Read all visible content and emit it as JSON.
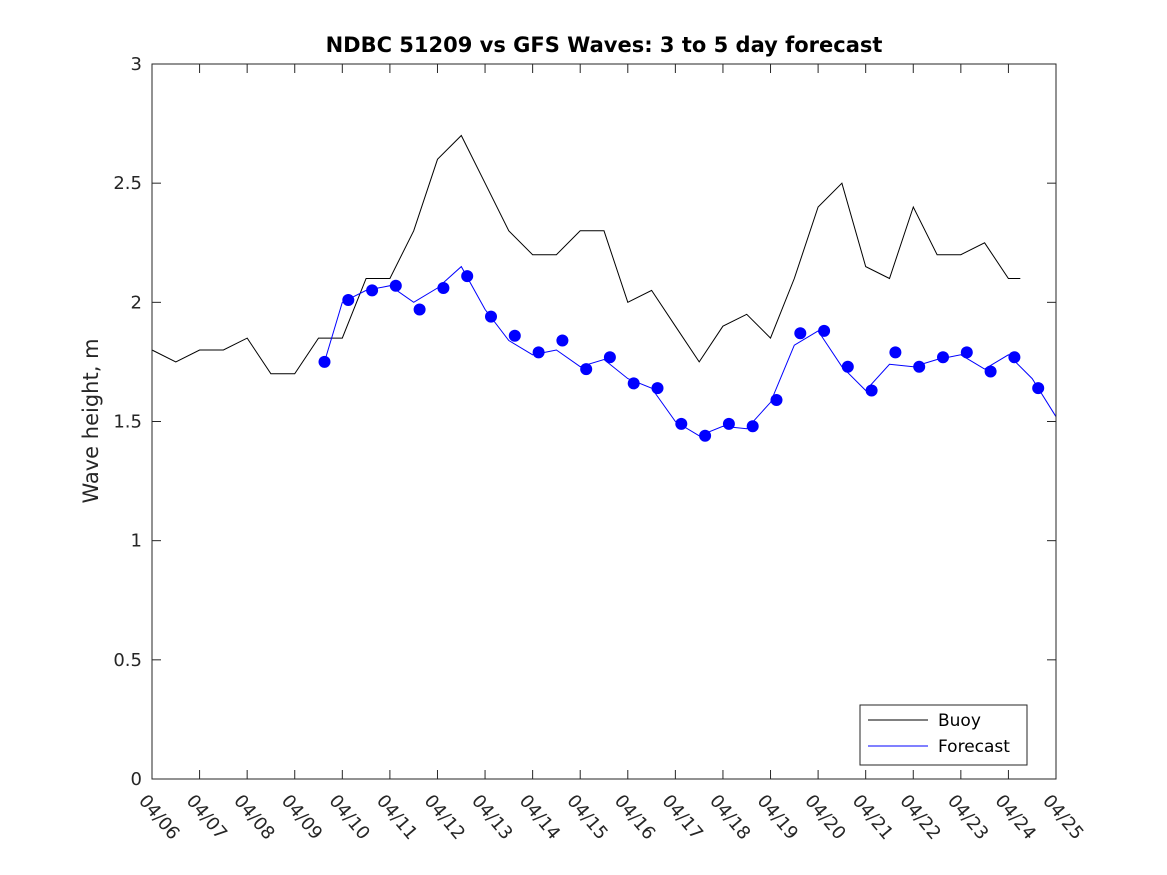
{
  "chart_data": {
    "type": "line",
    "title": "NDBC 51209 vs GFS Waves: 3 to 5 day forecast",
    "xlabel": "",
    "ylabel": "Wave height, m",
    "ylim": [
      0,
      3
    ],
    "yticks": [
      "0",
      "0.5",
      "1",
      "1.5",
      "2",
      "2.5",
      "3"
    ],
    "xlim": [
      "04/06",
      "04/25"
    ],
    "xticks": [
      "04/06",
      "04/07",
      "04/08",
      "04/09",
      "04/10",
      "04/11",
      "04/12",
      "04/13",
      "04/14",
      "04/15",
      "04/16",
      "04/17",
      "04/18",
      "04/19",
      "04/20",
      "04/21",
      "04/22",
      "04/23",
      "04/24",
      "04/25"
    ],
    "grid": false,
    "legend": {
      "location": "bottom-right",
      "entries": [
        "Buoy",
        "Forecast"
      ]
    },
    "colors": {
      "buoy": "#000000",
      "forecast": "#0000ff"
    },
    "buoy": {
      "name": "Buoy",
      "x": [
        "04/06",
        "04/06 12:00",
        "04/07",
        "04/07 12:00",
        "04/08",
        "04/08 12:00",
        "04/09",
        "04/09 12:00",
        "04/10",
        "04/10 12:00",
        "04/11",
        "04/11 12:00",
        "04/12",
        "04/12 12:00",
        "04/13",
        "04/13 12:00",
        "04/14",
        "04/14 12:00",
        "04/15",
        "04/15 12:00",
        "04/16",
        "04/16 12:00",
        "04/17",
        "04/17 12:00",
        "04/18",
        "04/18 12:00",
        "04/19",
        "04/19 12:00",
        "04/20",
        "04/20 12:00",
        "04/21",
        "04/21 12:00",
        "04/22",
        "04/22 12:00",
        "04/23",
        "04/23 12:00",
        "04/24",
        "04/24 06:00"
      ],
      "y": [
        1.8,
        1.75,
        1.8,
        1.8,
        1.85,
        1.7,
        1.7,
        1.85,
        1.85,
        2.1,
        2.1,
        2.3,
        2.6,
        2.7,
        2.5,
        2.3,
        2.2,
        2.2,
        2.3,
        2.3,
        2.0,
        2.05,
        1.9,
        1.75,
        1.9,
        1.95,
        1.85,
        2.1,
        2.4,
        2.5,
        2.15,
        2.1,
        2.4,
        2.2,
        2.2,
        2.25,
        2.1,
        2.1
      ]
    },
    "forecast": {
      "name": "Forecast",
      "x": [
        "04/09 15:00",
        "04/10",
        "04/10 12:00",
        "04/11",
        "04/11 12:00",
        "04/12",
        "04/12 12:00",
        "04/13",
        "04/13 12:00",
        "04/14",
        "04/14 12:00",
        "04/15",
        "04/15 12:00",
        "04/16",
        "04/16 12:00",
        "04/17",
        "04/17 12:00",
        "04/18",
        "04/18 12:00",
        "04/19",
        "04/19 12:00",
        "04/20",
        "04/20 12:00",
        "04/21",
        "04/21 12:00",
        "04/22",
        "04/22 12:00",
        "04/23",
        "04/23 12:00",
        "04/24",
        "04/24 12:00",
        "04/25"
      ],
      "y": [
        1.75,
        2.0,
        2.05,
        2.07,
        2.0,
        2.06,
        2.15,
        1.97,
        1.84,
        1.78,
        1.8,
        1.73,
        1.76,
        1.68,
        1.64,
        1.5,
        1.44,
        1.48,
        1.47,
        1.58,
        1.82,
        1.88,
        1.73,
        1.63,
        1.74,
        1.73,
        1.76,
        1.78,
        1.72,
        1.78,
        1.68,
        1.52
      ]
    },
    "forecast_markers": {
      "name": "Forecast",
      "x": [
        "04/09 15:00",
        "04/10 03:00",
        "04/10 15:00",
        "04/11 03:00",
        "04/11 15:00",
        "04/12 03:00",
        "04/12 15:00",
        "04/13 03:00",
        "04/13 15:00",
        "04/14 03:00",
        "04/14 15:00",
        "04/15 03:00",
        "04/15 15:00",
        "04/16 03:00",
        "04/16 15:00",
        "04/17 03:00",
        "04/17 15:00",
        "04/18 03:00",
        "04/18 15:00",
        "04/19 03:00",
        "04/19 15:00",
        "04/20 03:00",
        "04/20 15:00",
        "04/21 03:00",
        "04/21 15:00",
        "04/22 03:00",
        "04/22 15:00",
        "04/23 03:00",
        "04/23 15:00",
        "04/24 03:00",
        "04/24 15:00"
      ],
      "y": [
        1.75,
        2.01,
        2.05,
        2.07,
        1.97,
        2.06,
        2.11,
        1.94,
        1.86,
        1.79,
        1.84,
        1.72,
        1.77,
        1.66,
        1.64,
        1.49,
        1.44,
        1.49,
        1.48,
        1.59,
        1.87,
        1.88,
        1.73,
        1.63,
        1.79,
        1.73,
        1.77,
        1.79,
        1.71,
        1.77,
        1.64
      ]
    }
  }
}
